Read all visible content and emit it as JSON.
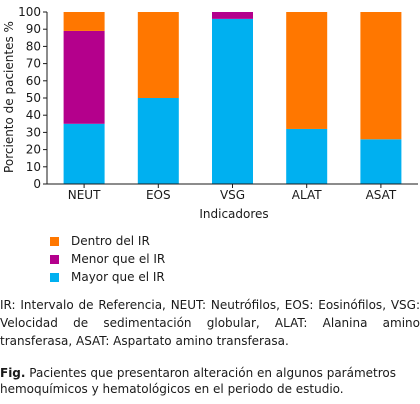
{
  "chart_data": {
    "type": "bar",
    "stacked": true,
    "categories": [
      "NEUT",
      "EOS",
      "VSG",
      "ALAT",
      "ASAT"
    ],
    "series": [
      {
        "name": "Mayor que el IR",
        "color": "#00b0f0",
        "values": [
          35,
          50,
          96,
          32,
          26
        ]
      },
      {
        "name": "Menor que el IR",
        "color": "#b4008c",
        "values": [
          54,
          0,
          4,
          0,
          0
        ]
      },
      {
        "name": "Dentro del IR",
        "color": "#ff7700",
        "values": [
          11,
          50,
          0,
          68,
          74
        ]
      }
    ],
    "xlabel": "Indicadores",
    "ylabel": "Porciento de pacientes %",
    "ylim": [
      0,
      100
    ],
    "yticks": [
      0,
      10,
      20,
      30,
      40,
      50,
      60,
      70,
      80,
      90,
      100
    ],
    "grid": false,
    "legend_position": "bottom-left"
  },
  "legend": [
    {
      "label": "Dentro del IR",
      "color": "#ff7700"
    },
    {
      "label": "Menor que el IR",
      "color": "#b4008c"
    },
    {
      "label": "Mayor que el IR",
      "color": "#00b0f0"
    }
  ],
  "note": {
    "text": "IR: Intervalo de Referencia, NEUT: Neutrófilos, EOS: Eosinófilos, VSG: Velocidad de sedimentación globular, ALAT: Alanina amino transferasa, ASAT: Aspartato amino transferasa."
  },
  "caption": {
    "label": "Fig.",
    "text": " Pacientes que presentaron alteración en algunos parámetros hemoquímicos y hematológicos en el periodo de estudio."
  }
}
